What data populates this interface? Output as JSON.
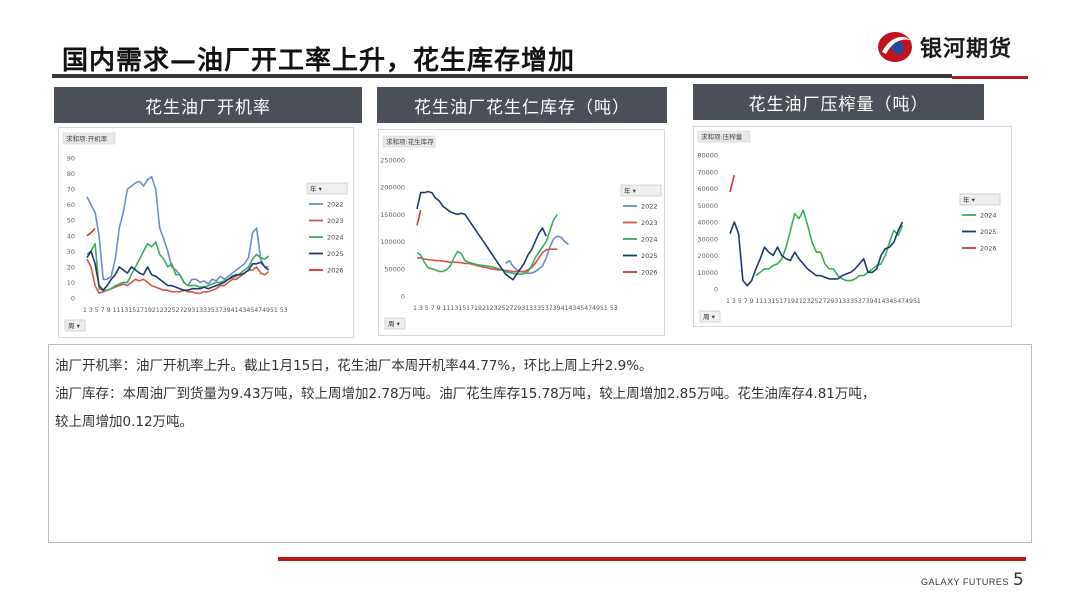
{
  "header": {
    "title": "国内需求—油厂开工率上升，花生库存增加",
    "logo_text": "银河期货"
  },
  "panels": [
    {
      "header": "花生油厂开机率"
    },
    {
      "header": "花生油厂花生仁库存（吨）"
    },
    {
      "header": "花生油厂压榨量（吨）"
    }
  ],
  "text": {
    "line1": "油厂开机率：油厂开机率上升。截止1月15日，花生油厂本周开机率44.77%，环比上周上升2.9%。",
    "line2": "油厂库存：本周油厂到货量为9.43万吨，较上周增加2.78万吨。油厂花生库存15.78万吨，较上周增加2.85万吨。花生油库存4.81万吨，",
    "line3": "较上周增加0.12万吨。"
  },
  "footer": {
    "brand": "GALAXY FUTURES",
    "page": "5"
  },
  "chart_data": [
    {
      "type": "line",
      "title": "求和项:开机率",
      "x_tick_labels": "1 3 5 7 9 111315171921232527293133353739414345474951 53",
      "x_filter": "周",
      "legend_title": "年",
      "ylim": [
        0,
        90
      ],
      "yticks": [
        0,
        10,
        20,
        30,
        40,
        50,
        60,
        70,
        80,
        90
      ],
      "weeks": 53,
      "series": [
        {
          "name": "2022",
          "color": "#6a8fc1",
          "values": [
            65,
            60,
            55,
            40,
            12,
            12,
            14,
            25,
            45,
            55,
            70,
            72,
            74,
            75,
            72,
            76,
            78,
            70,
            45,
            38,
            30,
            20,
            18,
            15,
            10,
            8,
            12,
            12,
            10,
            11,
            9,
            12,
            11,
            14,
            12,
            14,
            16,
            18,
            20,
            22,
            26,
            42,
            45,
            25,
            20,
            20
          ]
        },
        {
          "name": "2023",
          "color": "#d9534f",
          "values": [
            25,
            20,
            8,
            3,
            4,
            5,
            6,
            7,
            8,
            9,
            8,
            10,
            12,
            11,
            12,
            10,
            8,
            7,
            6,
            5,
            5,
            4,
            4,
            4,
            5,
            4,
            4,
            3,
            3,
            4,
            4,
            5,
            6,
            8,
            8,
            10,
            12,
            12,
            14,
            16,
            18,
            18,
            20,
            16,
            15,
            17
          ]
        },
        {
          "name": "2024",
          "color": "#3aae5a",
          "values": [
            28,
            30,
            35,
            6,
            5,
            5,
            6,
            8,
            9,
            10,
            10,
            15,
            20,
            25,
            30,
            35,
            33,
            36,
            28,
            25,
            20,
            22,
            15,
            15,
            10,
            8,
            8,
            8,
            7,
            7,
            8,
            9,
            10,
            10,
            11,
            12,
            13,
            14,
            16,
            18,
            20,
            25,
            28,
            26,
            25,
            27
          ]
        },
        {
          "name": "2025",
          "color": "#1f3a6b",
          "values": [
            26,
            30,
            22,
            8,
            5,
            8,
            12,
            15,
            20,
            18,
            16,
            20,
            18,
            16,
            15,
            20,
            15,
            14,
            12,
            10,
            8,
            8,
            7,
            6,
            5,
            5,
            6,
            6,
            6,
            7,
            6,
            7,
            8,
            9,
            10,
            12,
            14,
            15,
            15,
            16,
            18,
            22,
            22,
            23,
            20,
            18
          ]
        },
        {
          "name": "2026",
          "color": "#d9342b",
          "values": [
            40,
            42,
            44.77
          ]
        }
      ]
    },
    {
      "type": "line",
      "title": "求和项:花生库存",
      "x_tick_labels": "1 3 5 7 9 111315171921232527293133353739414345474951 53",
      "x_filter": "周",
      "legend_title": "年",
      "ylim": [
        0,
        250000
      ],
      "yticks": [
        0,
        50000,
        100000,
        150000,
        200000,
        250000
      ],
      "weeks": 53,
      "series": [
        {
          "name": "2022",
          "color": "#6a8fc1",
          "values": [
            null,
            null,
            null,
            null,
            null,
            null,
            null,
            null,
            null,
            null,
            null,
            null,
            null,
            null,
            null,
            null,
            null,
            null,
            null,
            null,
            null,
            null,
            null,
            null,
            60000,
            65000,
            55000,
            48000,
            45000,
            44000,
            42000,
            42000,
            45000,
            50000,
            55000,
            70000,
            90000,
            105000,
            110000,
            108000,
            100000,
            95000
          ]
        },
        {
          "name": "2023",
          "color": "#d9534f",
          "values": [
            70000,
            70000,
            68000,
            67000,
            66000,
            65000,
            65000,
            64000,
            63000,
            62000,
            62000,
            62000,
            61000,
            60000,
            60000,
            58000,
            56000,
            55000,
            53000,
            52000,
            50000,
            49000,
            48000,
            48000,
            47000,
            46000,
            45000,
            45000,
            45000,
            45000,
            48000,
            52000,
            60000,
            70000,
            80000,
            85000,
            86000,
            86000,
            86000
          ]
        },
        {
          "name": "2024",
          "color": "#3aae5a",
          "values": [
            80000,
            75000,
            62000,
            52000,
            50000,
            48000,
            45000,
            45000,
            48000,
            55000,
            70000,
            82000,
            78000,
            65000,
            62000,
            60000,
            58000,
            57000,
            56000,
            55000,
            54000,
            52000,
            50000,
            48000,
            45000,
            43000,
            42000,
            40000,
            40000,
            41000,
            45000,
            55000,
            70000,
            80000,
            90000,
            100000,
            120000,
            140000,
            150000
          ]
        },
        {
          "name": "2025",
          "color": "#1f3a6b",
          "values": [
            160000,
            190000,
            190000,
            192000,
            190000,
            180000,
            175000,
            165000,
            160000,
            155000,
            152000,
            150000,
            152000,
            150000,
            140000,
            130000,
            120000,
            110000,
            100000,
            90000,
            80000,
            70000,
            60000,
            50000,
            40000,
            35000,
            30000,
            40000,
            50000,
            60000,
            75000,
            85000,
            100000,
            115000,
            125000,
            110000
          ]
        },
        {
          "name": "2026",
          "color": "#d9342b",
          "values": [
            130000,
            157800
          ]
        }
      ]
    },
    {
      "type": "line",
      "title": "求和项:压榨量",
      "x_tick_labels": "1 3 5 7 9 111315171921232527293133353739414345474951",
      "x_filter": "周",
      "legend_title": "年",
      "ylim": [
        0,
        80000
      ],
      "yticks": [
        0,
        10000,
        20000,
        30000,
        40000,
        50000,
        60000,
        70000,
        80000
      ],
      "weeks": 52,
      "series": [
        {
          "name": "2024",
          "color": "#3aae5a",
          "values": [
            null,
            null,
            null,
            null,
            null,
            null,
            8000,
            10000,
            12000,
            12000,
            14000,
            15000,
            18000,
            25000,
            35000,
            45000,
            42000,
            47000,
            38000,
            28000,
            22000,
            22000,
            15000,
            12000,
            12000,
            8000,
            6000,
            5000,
            5000,
            6000,
            8000,
            8000,
            10000,
            12000,
            14000,
            15000,
            20000,
            28000,
            35000,
            32000,
            38000
          ]
        },
        {
          "name": "2025",
          "color": "#1f3a6b",
          "values": [
            33000,
            40000,
            33000,
            5000,
            2000,
            5000,
            12000,
            18000,
            25000,
            22000,
            20000,
            25000,
            20000,
            18000,
            17000,
            22000,
            18000,
            15000,
            12000,
            10000,
            8000,
            8000,
            7000,
            6000,
            6000,
            6000,
            8000,
            9000,
            10000,
            12000,
            15000,
            18000,
            10000,
            10000,
            12000,
            20000,
            24000,
            25000,
            28000,
            35000,
            40000
          ]
        },
        {
          "name": "2026",
          "color": "#d9342b",
          "values": [
            58000,
            68000
          ]
        }
      ]
    }
  ]
}
